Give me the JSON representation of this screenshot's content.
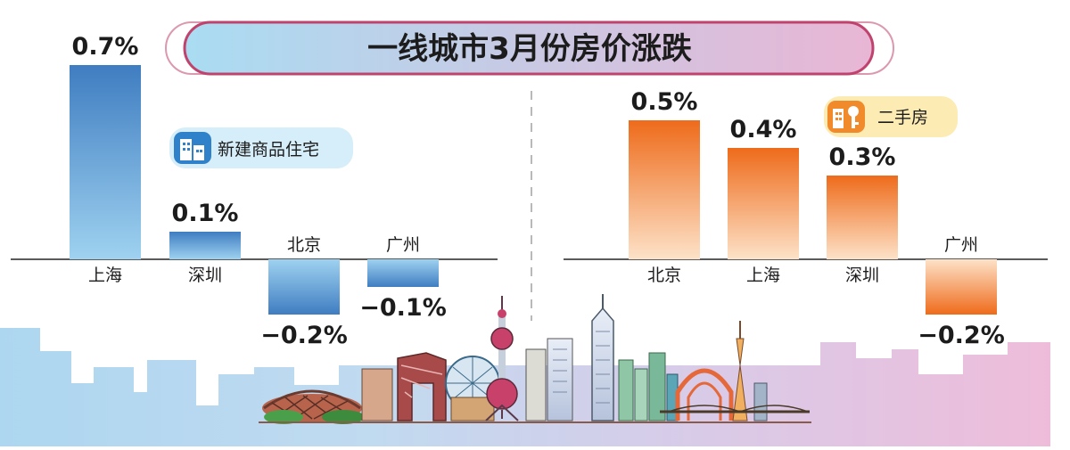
{
  "title": "一线城市3月份房价涨跌",
  "chart_data": [
    {
      "type": "bar",
      "legend": "新建商品住宅",
      "categories": [
        "上海",
        "深圳",
        "北京",
        "广州"
      ],
      "values": [
        0.7,
        0.1,
        -0.2,
        -0.1
      ],
      "value_labels": [
        "0.7%",
        "0.1%",
        "−0.2%",
        "−0.1%"
      ],
      "colors": {
        "top": "#3f7dc1",
        "bottom": "#9fd2f0"
      }
    },
    {
      "type": "bar",
      "legend": "二手房",
      "categories": [
        "北京",
        "上海",
        "深圳",
        "广州"
      ],
      "values": [
        0.5,
        0.4,
        0.3,
        -0.2
      ],
      "value_labels": [
        "0.5%",
        "0.4%",
        "0.3%",
        "−0.2%"
      ],
      "colors": {
        "top": "#ee6b1b",
        "bottom": "#fde2c8"
      }
    }
  ],
  "colors": {
    "title_fill_left": "#a9dcf2",
    "title_fill_right": "#e9b6d5",
    "title_border": "#c0436e",
    "legend_new_bg": "#d6eef9",
    "legend_new_icon": "#2f82c9",
    "legend_second_bg": "#fdebb4",
    "legend_second_icon": "#f08a2b",
    "text": "#1c1c1c"
  },
  "icons": {
    "new_home": "building-icon",
    "second_hand": "house-key-icon"
  }
}
